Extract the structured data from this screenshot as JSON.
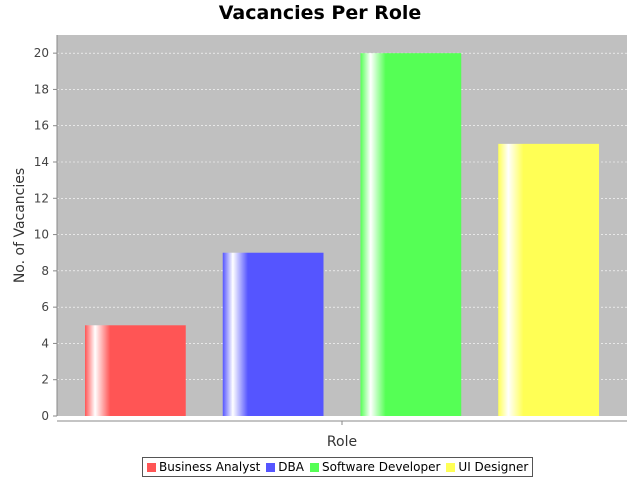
{
  "chart_data": {
    "type": "bar",
    "title": "Vacancies Per Role",
    "xlabel": "Role",
    "ylabel": "No. of Vacancies",
    "ylim": [
      0,
      21
    ],
    "yticks": [
      0,
      2,
      4,
      6,
      8,
      10,
      12,
      14,
      16,
      18,
      20
    ],
    "grid": true,
    "legend_position": "bottom",
    "series": [
      {
        "name": "Business Analyst",
        "value": 5,
        "color": "#ff5555"
      },
      {
        "name": "DBA",
        "value": 9,
        "color": "#5555ff"
      },
      {
        "name": "Software Developer",
        "value": 20,
        "color": "#55ff55"
      },
      {
        "name": "UI Designer",
        "value": 15,
        "color": "#ffff55"
      }
    ]
  }
}
